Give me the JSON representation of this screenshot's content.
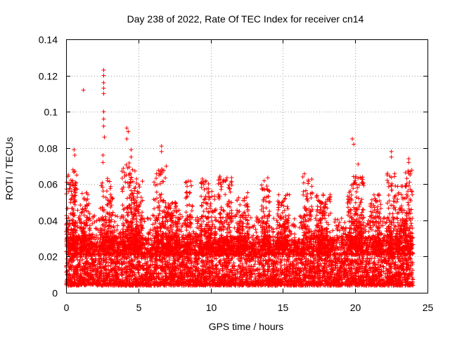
{
  "chart_data": {
    "type": "scatter",
    "title": "Day 238 of 2022, Rate Of TEC Index for receiver cn14",
    "xlabel": "GPS time / hours",
    "ylabel": "ROTI / TECUs",
    "xlim": [
      0,
      25
    ],
    "ylim": [
      0,
      0.14
    ],
    "grid": true,
    "x_ticks": [
      0,
      5,
      10,
      15,
      20,
      25
    ],
    "x_tick_labels": [
      "0",
      "5",
      "10",
      "15",
      "20",
      "25"
    ],
    "y_ticks": [
      0,
      0.02,
      0.04,
      0.06,
      0.08,
      0.1,
      0.12,
      0.14
    ],
    "y_tick_labels": [
      "0",
      "0.02",
      "0.04",
      "0.06",
      "0.08",
      "0.1",
      "0.12",
      "0.14"
    ],
    "marker": "+",
    "series": [
      {
        "name": "ROTI",
        "color": "#ff0000",
        "x_range": [
          0,
          24
        ],
        "baseline_range": [
          0.004,
          0.03
        ],
        "notable_points": [
          {
            "x": 1.2,
            "y": 0.112
          },
          {
            "x": 2.6,
            "y": 0.123
          },
          {
            "x": 2.6,
            "y": 0.12
          },
          {
            "x": 2.6,
            "y": 0.116
          },
          {
            "x": 2.6,
            "y": 0.113
          },
          {
            "x": 2.6,
            "y": 0.11
          },
          {
            "x": 2.6,
            "y": 0.1
          },
          {
            "x": 2.6,
            "y": 0.096
          },
          {
            "x": 2.6,
            "y": 0.092
          },
          {
            "x": 2.65,
            "y": 0.086
          },
          {
            "x": 2.55,
            "y": 0.076
          },
          {
            "x": 2.55,
            "y": 0.072
          },
          {
            "x": 4.2,
            "y": 0.091
          },
          {
            "x": 4.3,
            "y": 0.089
          },
          {
            "x": 4.2,
            "y": 0.085
          },
          {
            "x": 4.5,
            "y": 0.079
          },
          {
            "x": 4.5,
            "y": 0.075
          },
          {
            "x": 6.6,
            "y": 0.081
          },
          {
            "x": 6.6,
            "y": 0.078
          },
          {
            "x": 0.55,
            "y": 0.079
          },
          {
            "x": 0.6,
            "y": 0.076
          },
          {
            "x": 19.8,
            "y": 0.085
          },
          {
            "x": 19.9,
            "y": 0.082
          },
          {
            "x": 20.2,
            "y": 0.071
          },
          {
            "x": 22.5,
            "y": 0.078
          },
          {
            "x": 22.5,
            "y": 0.075
          },
          {
            "x": 23.7,
            "y": 0.074
          },
          {
            "x": 23.7,
            "y": 0.072
          },
          {
            "x": 23.7,
            "y": 0.066
          }
        ],
        "peak_clusters": [
          {
            "x": 0.2,
            "max": 0.068,
            "width": 0.45
          },
          {
            "x": 0.6,
            "max": 0.07,
            "width": 0.2
          },
          {
            "x": 1.3,
            "max": 0.056,
            "width": 0.35
          },
          {
            "x": 2.6,
            "max": 0.062,
            "width": 0.25
          },
          {
            "x": 3.1,
            "max": 0.064,
            "width": 0.25
          },
          {
            "x": 4.2,
            "max": 0.072,
            "width": 0.35
          },
          {
            "x": 4.6,
            "max": 0.068,
            "width": 0.3
          },
          {
            "x": 5.0,
            "max": 0.062,
            "width": 0.3
          },
          {
            "x": 6.5,
            "max": 0.07,
            "width": 0.45
          },
          {
            "x": 7.4,
            "max": 0.05,
            "width": 0.5
          },
          {
            "x": 8.5,
            "max": 0.062,
            "width": 0.25
          },
          {
            "x": 9.6,
            "max": 0.063,
            "width": 0.3
          },
          {
            "x": 10.1,
            "max": 0.058,
            "width": 0.3
          },
          {
            "x": 11.0,
            "max": 0.065,
            "width": 0.5
          },
          {
            "x": 12.2,
            "max": 0.056,
            "width": 0.4
          },
          {
            "x": 13.8,
            "max": 0.065,
            "width": 0.3
          },
          {
            "x": 15.0,
            "max": 0.055,
            "width": 0.45
          },
          {
            "x": 16.7,
            "max": 0.066,
            "width": 0.35
          },
          {
            "x": 17.8,
            "max": 0.055,
            "width": 0.5
          },
          {
            "x": 19.8,
            "max": 0.066,
            "width": 0.35
          },
          {
            "x": 20.3,
            "max": 0.064,
            "width": 0.3
          },
          {
            "x": 21.4,
            "max": 0.055,
            "width": 0.4
          },
          {
            "x": 22.5,
            "max": 0.066,
            "width": 0.3
          },
          {
            "x": 23.2,
            "max": 0.06,
            "width": 0.4
          },
          {
            "x": 23.7,
            "max": 0.068,
            "width": 0.25
          }
        ]
      }
    ]
  }
}
